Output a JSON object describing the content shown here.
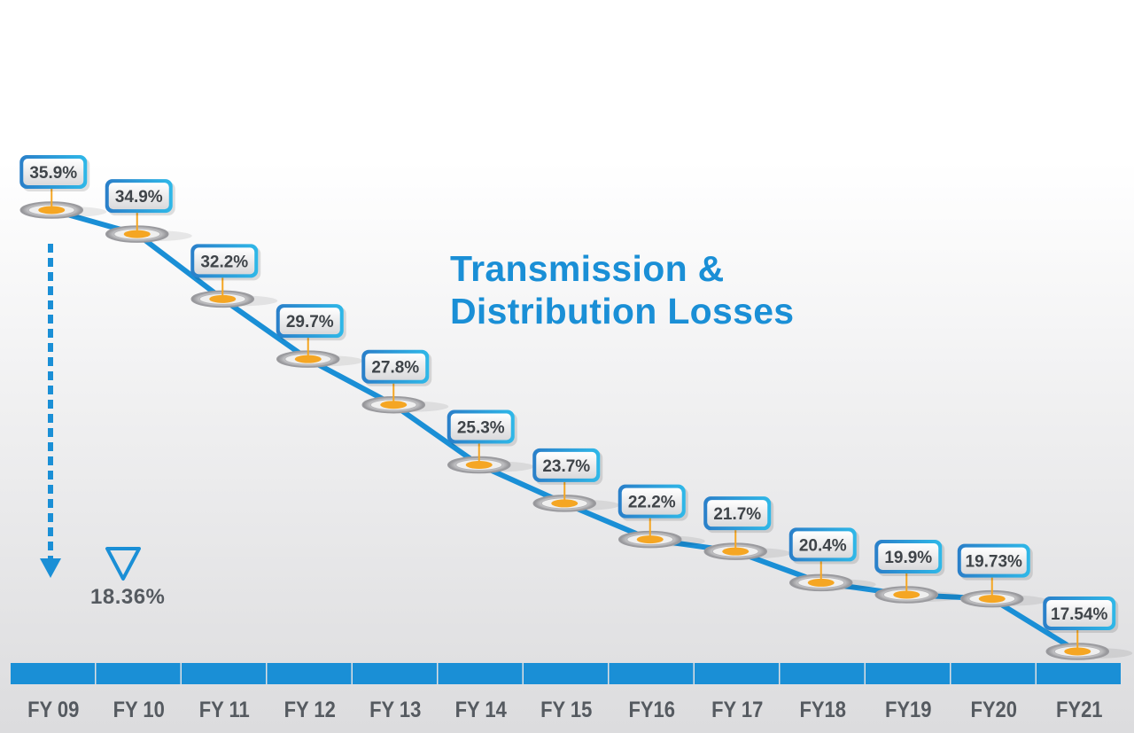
{
  "title_lines": [
    "Transmission &",
    "Distribution Losses"
  ],
  "summary_value": "18.36%",
  "colors": {
    "line": "#1a8fd6",
    "bar": "#1a8fd6",
    "label_text": "#3f4449",
    "axis_text": "#555a60",
    "marker_core": "#f5a623"
  },
  "chart_data": {
    "type": "line",
    "title": "Transmission & Distribution Losses",
    "categories": [
      "FY 09",
      "FY 10",
      "FY 11",
      "FY 12",
      "FY 13",
      "FY 14",
      "FY 15",
      "FY16",
      "FY 17",
      "FY18",
      "FY19",
      "FY20",
      "FY21"
    ],
    "series": [
      {
        "values": [
          35.9,
          34.9,
          32.2,
          29.7,
          27.8,
          25.3,
          23.7,
          22.2,
          21.7,
          20.4,
          19.9,
          19.73,
          17.54
        ],
        "labels": [
          "35.9%",
          "34.9%",
          "32.2%",
          "29.7%",
          "27.8%",
          "25.3%",
          "23.7%",
          "22.2%",
          "21.7%",
          "20.4%",
          "19.9%",
          "19.73%",
          "17.54%"
        ]
      }
    ],
    "ylim": [
      15,
      38
    ],
    "grid": false,
    "annotation": "18.36%"
  }
}
